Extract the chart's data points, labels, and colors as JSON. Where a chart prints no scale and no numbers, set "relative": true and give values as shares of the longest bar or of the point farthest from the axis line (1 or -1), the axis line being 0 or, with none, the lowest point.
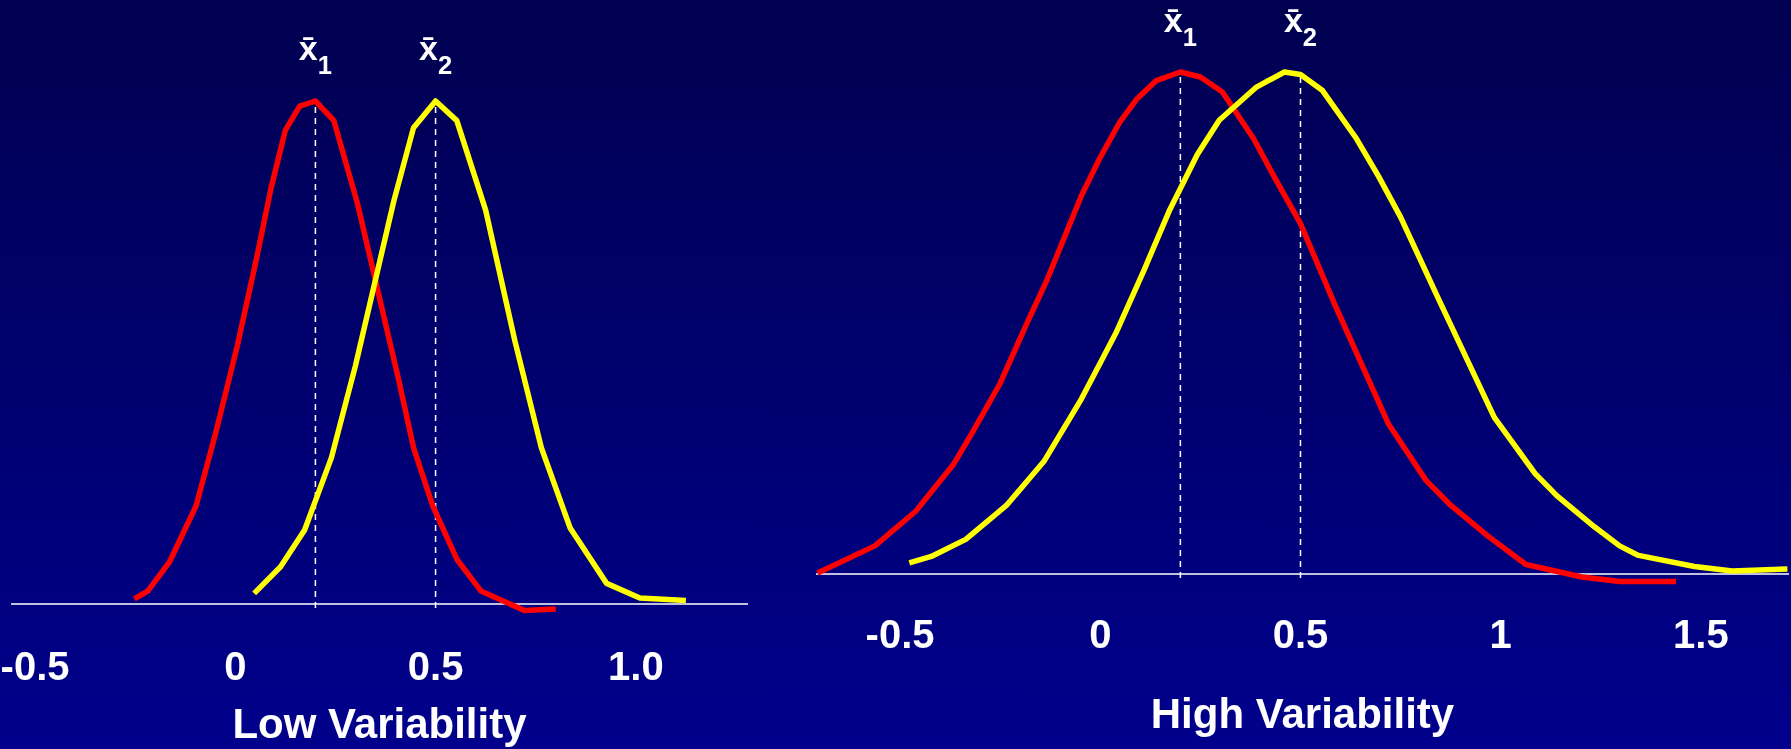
{
  "chart_data": [
    {
      "type": "line",
      "relative": true,
      "xlabel": "Low Variability",
      "xlim": [
        -0.56,
        1.28
      ],
      "xticks": [
        -0.5,
        0,
        0.5,
        {
          "value": 1,
          "label": "1.0"
        }
      ],
      "series": [
        {
          "color": "#ff0000",
          "x": [
            -0.252,
            -0.218,
            -0.164,
            -0.098,
            -0.049,
            0.005,
            0.053,
            0.089,
            0.125,
            0.161,
            0.2,
            0.246,
            0.306,
            0.354,
            0.408,
            0.445,
            0.493,
            0.553,
            0.613,
            0.722,
            0.8
          ],
          "values": [
            0.01,
            0.026,
            0.084,
            0.195,
            0.34,
            0.513,
            0.687,
            0.826,
            0.942,
            0.99,
            1,
            0.961,
            0.793,
            0.629,
            0.445,
            0.311,
            0.195,
            0.089,
            0.026,
            -0.013,
            -0.01
          ]
        },
        {
          "color": "#ffff00",
          "x": [
            0.047,
            0.113,
            0.173,
            0.24,
            0.3,
            0.348,
            0.396,
            0.445,
            0.5,
            0.553,
            0.625,
            0.698,
            0.764,
            0.836,
            0.927,
            1.01,
            1.125
          ],
          "values": [
            0.021,
            0.074,
            0.147,
            0.291,
            0.474,
            0.638,
            0.802,
            0.947,
            1,
            0.961,
            0.783,
            0.523,
            0.311,
            0.151,
            0.041,
            0.012,
            0.007
          ]
        }
      ],
      "ref_lines": [
        {
          "axis": "x",
          "value": 0.2,
          "label": "x̄$_{1}$",
          "color": "#ffffff",
          "line_style": "dashed"
        },
        {
          "axis": "x",
          "value": 0.5,
          "label": "x̄$_{2}$",
          "color": "#ffffff",
          "line_style": "dashed"
        }
      ]
    },
    {
      "type": "line",
      "relative": true,
      "xlabel": "High Variability",
      "xlim": [
        -0.71,
        1.72
      ],
      "xticks": [
        -0.5,
        0,
        0.5,
        1,
        1.5
      ],
      "series": [
        {
          "color": "#ff0000",
          "x": [
            -0.706,
            -0.563,
            -0.461,
            -0.367,
            -0.32,
            -0.25,
            -0.18,
            -0.133,
            -0.047,
            0,
            0.047,
            0.09,
            0.14,
            0.2,
            0.25,
            0.305,
            0.383,
            0.438,
            0.5,
            0.586,
            0.719,
            0.813,
            0.875,
            0.969,
            1.063,
            1.203,
            1.297,
            1.438
          ],
          "values": [
            0.002,
            0.056,
            0.125,
            0.218,
            0.281,
            0.38,
            0.505,
            0.586,
            0.754,
            0.83,
            0.898,
            0.945,
            0.983,
            1,
            0.99,
            0.96,
            0.867,
            0.786,
            0.698,
            0.536,
            0.3,
            0.187,
            0.137,
            0.075,
            0.019,
            -0.006,
            -0.015,
            -0.015
          ]
        },
        {
          "color": "#ffff00",
          "x": [
            -0.477,
            -0.422,
            -0.336,
            -0.234,
            -0.141,
            -0.047,
            0.039,
            0.109,
            0.172,
            0.242,
            0.297,
            0.39,
            0.46,
            0.5,
            0.555,
            0.64,
            0.695,
            0.75,
            0.844,
            0.984,
            1.086,
            1.14,
            1.234,
            1.297,
            1.344,
            1.484,
            1.578,
            1.716
          ],
          "values": [
            0.022,
            0.035,
            0.069,
            0.137,
            0.224,
            0.349,
            0.48,
            0.605,
            0.723,
            0.835,
            0.904,
            0.97,
            1,
            0.995,
            0.963,
            0.867,
            0.792,
            0.711,
            0.549,
            0.312,
            0.2,
            0.156,
            0.094,
            0.056,
            0.037,
            0.015,
            0.006,
            0.01
          ]
        }
      ],
      "ref_lines": [
        {
          "axis": "x",
          "value": 0.2,
          "label": "x̄$_{1}$",
          "color": "#ffffff",
          "line_style": "dashed"
        },
        {
          "axis": "x",
          "value": 0.5,
          "label": "x̄$_{2}$",
          "color": "#ffffff",
          "line_style": "dashed"
        }
      ]
    }
  ]
}
